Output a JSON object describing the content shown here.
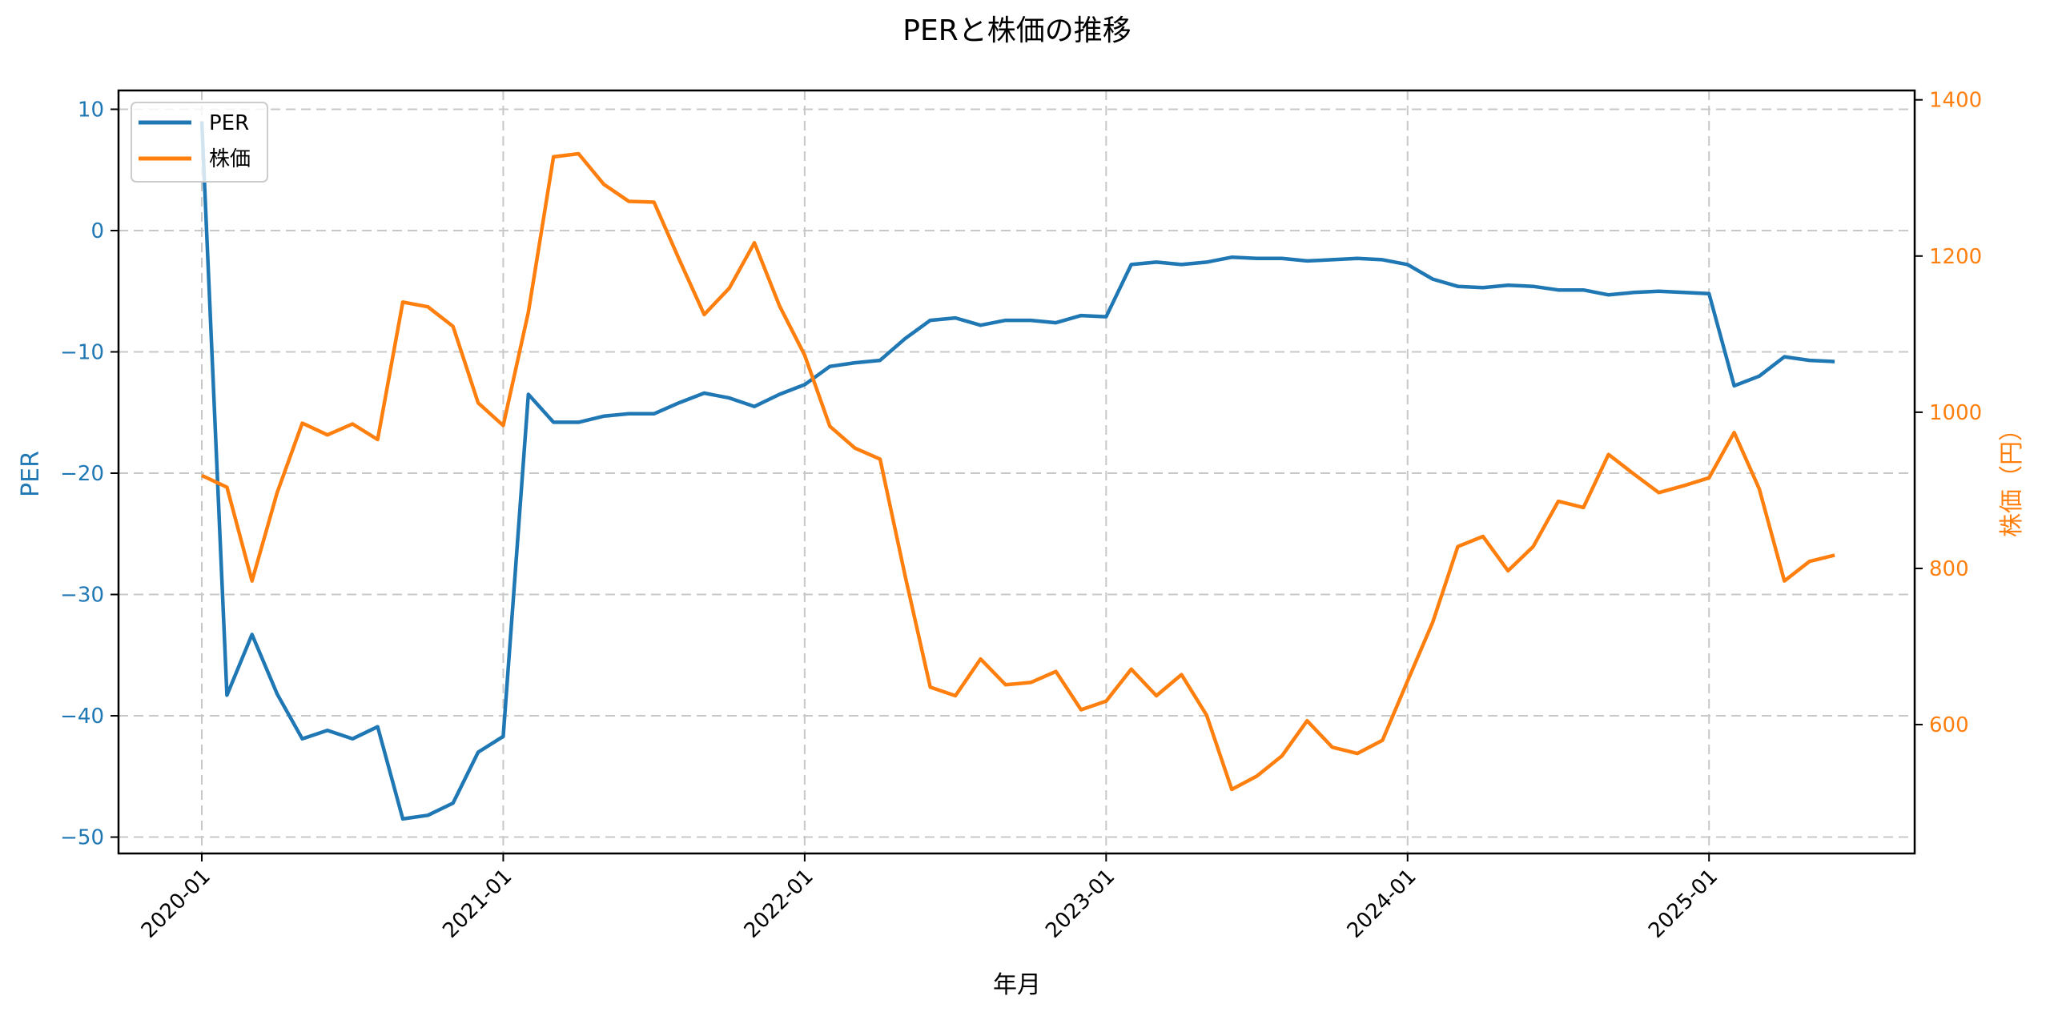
{
  "chart_data": {
    "type": "line",
    "title": "PERと株価の推移",
    "xlabel": "年月",
    "ylabel_left": "PER",
    "ylabel_right": "株価（円）",
    "x_tick_labels": [
      "2020-01",
      "2021-01",
      "2022-01",
      "2023-01",
      "2024-01",
      "2025-01"
    ],
    "x_tick_index": [
      0,
      12,
      24,
      36,
      48,
      60
    ],
    "left_axis": {
      "ylim": [
        -51.35,
        11.55
      ],
      "ticks": [
        10,
        0,
        -10,
        -20,
        -30,
        -40,
        -50
      ]
    },
    "right_axis": {
      "ylim": [
        435,
        1412
      ],
      "ticks": [
        600,
        800,
        1000,
        1200,
        1400
      ]
    },
    "grid": true,
    "legend_position": "upper left",
    "x": [
      "2020-01",
      "2020-02",
      "2020-03",
      "2020-04",
      "2020-05",
      "2020-06",
      "2020-07",
      "2020-08",
      "2020-09",
      "2020-10",
      "2020-11",
      "2020-12",
      "2021-01",
      "2021-02",
      "2021-03",
      "2021-04",
      "2021-05",
      "2021-06",
      "2021-07",
      "2021-08",
      "2021-09",
      "2021-10",
      "2021-11",
      "2021-12",
      "2022-01",
      "2022-02",
      "2022-03",
      "2022-04",
      "2022-05",
      "2022-06",
      "2022-07",
      "2022-08",
      "2022-09",
      "2022-10",
      "2022-11",
      "2022-12",
      "2023-01",
      "2023-02",
      "2023-03",
      "2023-04",
      "2023-05",
      "2023-06",
      "2023-07",
      "2023-08",
      "2023-09",
      "2023-10",
      "2023-11",
      "2023-12",
      "2024-01",
      "2024-02",
      "2024-03",
      "2024-04",
      "2024-05",
      "2024-06",
      "2024-07",
      "2024-08",
      "2024-09",
      "2024-10",
      "2024-11",
      "2024-12",
      "2025-01",
      "2025-02",
      "2025-03",
      "2025-04",
      "2025-05",
      "2025-06"
    ],
    "series": [
      {
        "name": "PER",
        "axis": "left",
        "color": "#1f77b4",
        "values": [
          9.0,
          -38.3,
          -33.3,
          -38.2,
          -41.9,
          -41.2,
          -41.9,
          -40.9,
          -48.5,
          -48.2,
          -47.2,
          -43.0,
          -41.7,
          -13.5,
          -15.8,
          -15.8,
          -15.3,
          -15.1,
          -15.1,
          -14.2,
          -13.4,
          -13.8,
          -14.5,
          -13.5,
          -12.7,
          -11.2,
          -10.9,
          -10.7,
          -8.9,
          -7.4,
          -7.2,
          -7.8,
          -7.4,
          -7.4,
          -7.6,
          -7.0,
          -7.1,
          -2.8,
          -2.6,
          -2.8,
          -2.6,
          -2.2,
          -2.3,
          -2.3,
          -2.5,
          -2.4,
          -2.3,
          -2.4,
          -2.8,
          -4.0,
          -4.6,
          -4.7,
          -4.5,
          -4.6,
          -4.9,
          -4.9,
          -5.3,
          -5.1,
          -5.0,
          -5.1,
          -5.2,
          -12.8,
          -12.0,
          -10.4,
          -10.7,
          -10.8
        ]
      },
      {
        "name": "株価",
        "axis": "right",
        "color": "#ff7f0e",
        "values": [
          919,
          904,
          784,
          897,
          986,
          971,
          985,
          965,
          1141,
          1135,
          1110,
          1012,
          983,
          1128,
          1327,
          1331,
          1292,
          1270,
          1269,
          1196,
          1125,
          1159,
          1217,
          1136,
          1073,
          982,
          954,
          940,
          790,
          648,
          637,
          684,
          651,
          654,
          668,
          619,
          630,
          671,
          637,
          664,
          612,
          517,
          534,
          560,
          605,
          571,
          563,
          580,
          656,
          731,
          828,
          841,
          797,
          828,
          886,
          878,
          946,
          921,
          897,
          906,
          916,
          974,
          902,
          784,
          809,
          817
        ]
      }
    ]
  },
  "legend": {
    "items": [
      {
        "label": "PER",
        "color": "#1f77b4"
      },
      {
        "label": "株価",
        "color": "#ff7f0e"
      }
    ]
  },
  "colors": {
    "left_axis": "#1f77b4",
    "right_axis": "#ff7f0e",
    "grid": "#c8c8c8",
    "frame": "#000000"
  }
}
